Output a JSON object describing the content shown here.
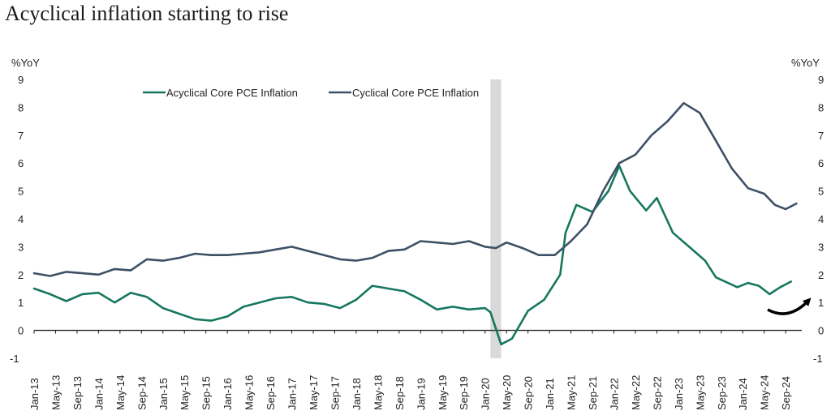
{
  "chart_data": {
    "type": "line",
    "title": "Acyclical inflation starting to rise",
    "ylabel_left": "%YoY",
    "ylabel_right": "%YoY",
    "ylim": [
      -1,
      9
    ],
    "y_ticks": [
      -1,
      0,
      1,
      2,
      3,
      4,
      5,
      6,
      7,
      8,
      9
    ],
    "x_range": [
      "2013-01",
      "2024-12"
    ],
    "x_tick_labels": [
      "Jan-13",
      "May-13",
      "Sep-13",
      "Jan-14",
      "May-14",
      "Sep-14",
      "Jan-15",
      "May-15",
      "Sep-15",
      "Jan-16",
      "May-16",
      "Sep-16",
      "Jan-17",
      "May-17",
      "Sep-17",
      "Jan-18",
      "May-18",
      "Sep-18",
      "Jan-19",
      "May-19",
      "Sep-19",
      "Jan-20",
      "May-20",
      "Sep-20",
      "Jan-21",
      "May-21",
      "Sep-21",
      "Jan-22",
      "May-22",
      "Sep-22",
      "Jan-23",
      "May-23",
      "Sep-23",
      "Jan-24",
      "May-24",
      "Sep-24"
    ],
    "legend_position": "top-left",
    "grid": false,
    "shaded_period": {
      "start": "2020-02",
      "end": "2020-04"
    },
    "annotation": "upward-arrow",
    "series": [
      {
        "name": "Acyclical Core PCE Inflation",
        "color": "#16775f",
        "points": [
          [
            "2013-01",
            1.5
          ],
          [
            "2013-04",
            1.3
          ],
          [
            "2013-07",
            1.05
          ],
          [
            "2013-10",
            1.3
          ],
          [
            "2014-01",
            1.35
          ],
          [
            "2014-04",
            1.0
          ],
          [
            "2014-07",
            1.35
          ],
          [
            "2014-10",
            1.2
          ],
          [
            "2015-01",
            0.8
          ],
          [
            "2015-04",
            0.6
          ],
          [
            "2015-07",
            0.4
          ],
          [
            "2015-10",
            0.35
          ],
          [
            "2016-01",
            0.5
          ],
          [
            "2016-04",
            0.85
          ],
          [
            "2016-07",
            1.0
          ],
          [
            "2016-10",
            1.15
          ],
          [
            "2017-01",
            1.2
          ],
          [
            "2017-04",
            1.0
          ],
          [
            "2017-07",
            0.95
          ],
          [
            "2017-10",
            0.8
          ],
          [
            "2018-01",
            1.1
          ],
          [
            "2018-04",
            1.6
          ],
          [
            "2018-07",
            1.5
          ],
          [
            "2018-10",
            1.4
          ],
          [
            "2019-01",
            1.1
          ],
          [
            "2019-04",
            0.75
          ],
          [
            "2019-07",
            0.85
          ],
          [
            "2019-10",
            0.75
          ],
          [
            "2020-01",
            0.8
          ],
          [
            "2020-02",
            0.65
          ],
          [
            "2020-04",
            -0.5
          ],
          [
            "2020-06",
            -0.3
          ],
          [
            "2020-09",
            0.7
          ],
          [
            "2020-12",
            1.1
          ],
          [
            "2021-03",
            2.0
          ],
          [
            "2021-04",
            3.5
          ],
          [
            "2021-06",
            4.5
          ],
          [
            "2021-09",
            4.25
          ],
          [
            "2021-12",
            5.0
          ],
          [
            "2022-02",
            5.9
          ],
          [
            "2022-04",
            5.0
          ],
          [
            "2022-07",
            4.3
          ],
          [
            "2022-09",
            4.75
          ],
          [
            "2022-12",
            3.5
          ],
          [
            "2023-03",
            3.0
          ],
          [
            "2023-06",
            2.5
          ],
          [
            "2023-08",
            1.9
          ],
          [
            "2023-12",
            1.55
          ],
          [
            "2024-02",
            1.7
          ],
          [
            "2024-04",
            1.6
          ],
          [
            "2024-06",
            1.3
          ],
          [
            "2024-08",
            1.55
          ],
          [
            "2024-10",
            1.75
          ]
        ]
      },
      {
        "name": "Cyclical Core PCE Inflation",
        "color": "#3e5066",
        "points": [
          [
            "2013-01",
            2.05
          ],
          [
            "2013-04",
            1.95
          ],
          [
            "2013-07",
            2.1
          ],
          [
            "2013-10",
            2.05
          ],
          [
            "2014-01",
            2.0
          ],
          [
            "2014-04",
            2.2
          ],
          [
            "2014-07",
            2.15
          ],
          [
            "2014-10",
            2.55
          ],
          [
            "2015-01",
            2.5
          ],
          [
            "2015-04",
            2.6
          ],
          [
            "2015-07",
            2.75
          ],
          [
            "2015-10",
            2.7
          ],
          [
            "2016-01",
            2.7
          ],
          [
            "2016-04",
            2.75
          ],
          [
            "2016-07",
            2.8
          ],
          [
            "2016-10",
            2.9
          ],
          [
            "2017-01",
            3.0
          ],
          [
            "2017-04",
            2.85
          ],
          [
            "2017-07",
            2.7
          ],
          [
            "2017-10",
            2.55
          ],
          [
            "2018-01",
            2.5
          ],
          [
            "2018-04",
            2.6
          ],
          [
            "2018-07",
            2.85
          ],
          [
            "2018-10",
            2.9
          ],
          [
            "2019-01",
            3.2
          ],
          [
            "2019-04",
            3.15
          ],
          [
            "2019-07",
            3.1
          ],
          [
            "2019-10",
            3.2
          ],
          [
            "2020-01",
            3.0
          ],
          [
            "2020-03",
            2.95
          ],
          [
            "2020-05",
            3.15
          ],
          [
            "2020-08",
            2.95
          ],
          [
            "2020-11",
            2.7
          ],
          [
            "2021-02",
            2.7
          ],
          [
            "2021-05",
            3.2
          ],
          [
            "2021-08",
            3.8
          ],
          [
            "2021-11",
            5.0
          ],
          [
            "2022-02",
            6.0
          ],
          [
            "2022-05",
            6.3
          ],
          [
            "2022-08",
            7.0
          ],
          [
            "2022-11",
            7.5
          ],
          [
            "2023-02",
            8.15
          ],
          [
            "2023-05",
            7.8
          ],
          [
            "2023-08",
            6.8
          ],
          [
            "2023-11",
            5.8
          ],
          [
            "2024-02",
            5.1
          ],
          [
            "2024-05",
            4.9
          ],
          [
            "2024-07",
            4.5
          ],
          [
            "2024-09",
            4.35
          ],
          [
            "2024-11",
            4.55
          ]
        ]
      }
    ]
  }
}
